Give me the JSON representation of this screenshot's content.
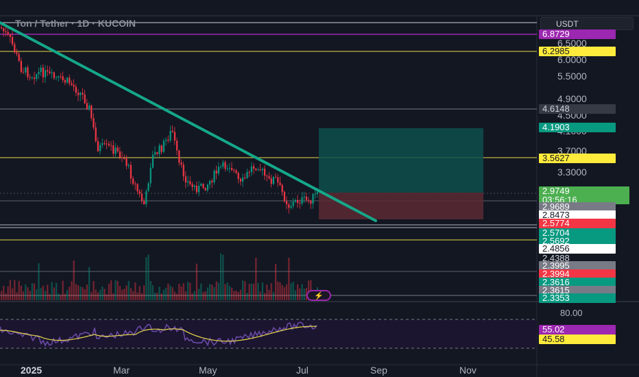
{
  "title": "Ton / Tether · 1D · KUCOIN",
  "currency": "USDT",
  "price_scale": [
    "6.5000",
    "6.0000",
    "5.5000",
    "4.9000",
    "4.5000",
    "4.1000",
    "3.7000",
    "3.3000"
  ],
  "rsi_scale": "80.00",
  "countdown": "03:56:16",
  "price_tags": [
    {
      "value": "6.8729",
      "bg": "#9c27b0",
      "fg": "#ffffff"
    },
    {
      "value": "6.2985",
      "bg": "#ffeb3b",
      "fg": "#131722"
    },
    {
      "value": "4.6148",
      "bg": "#363a45",
      "fg": "#d1d4dc"
    },
    {
      "value": "4.1903",
      "bg": "#089981",
      "fg": "#ffffff"
    },
    {
      "value": "3.5627",
      "bg": "#ffeb3b",
      "fg": "#131722"
    },
    {
      "value": "2.9749",
      "bg": "#4caf50",
      "fg": "#ffffff"
    },
    {
      "value": "2.9689",
      "bg": "#787b86",
      "fg": "#ffffff"
    },
    {
      "value": "2.8473",
      "bg": "#ffffff",
      "fg": "#131722"
    },
    {
      "value": "2.5774",
      "bg": "#f23645",
      "fg": "#ffffff"
    },
    {
      "value": "2.5704",
      "bg": "#089981",
      "fg": "#ffffff"
    },
    {
      "value": "2.5692",
      "bg": "#089981",
      "fg": "#ffffff"
    },
    {
      "value": "2.4856",
      "bg": "#ffffff",
      "fg": "#131722"
    },
    {
      "value": "2.4388",
      "bg": "#131722",
      "fg": "#d1d4dc"
    },
    {
      "value": "2.3995",
      "bg": "#787b86",
      "fg": "#ffffff"
    },
    {
      "value": "2.3994",
      "bg": "#f23645",
      "fg": "#ffffff"
    },
    {
      "value": "2.3616",
      "bg": "#089981",
      "fg": "#ffffff"
    },
    {
      "value": "2.3615",
      "bg": "#787b86",
      "fg": "#ffffff"
    },
    {
      "value": "2.3353",
      "bg": "#089981",
      "fg": "#ffffff"
    }
  ],
  "rsi_tags": [
    {
      "value": "55.02",
      "bg": "#9c27b0",
      "fg": "#ffffff"
    },
    {
      "value": "45.58",
      "bg": "#ffeb3b",
      "fg": "#131722"
    }
  ],
  "time_axis": [
    "2025",
    "Mar",
    "May",
    "Jul",
    "Sep",
    "Nov"
  ],
  "colors": {
    "up": "#089981",
    "down": "#f23645",
    "trendline": "#14a88a",
    "hline_yellow": "#e8d94a",
    "hline_purple": "#9c27b0",
    "rsi_line": "#e8d94a",
    "rsi_ma": "#7e57c2",
    "target_zone": "#0e4f4c",
    "stop_zone": "#5c2a33"
  },
  "icons": {
    "alert": "lightning-icon"
  }
}
